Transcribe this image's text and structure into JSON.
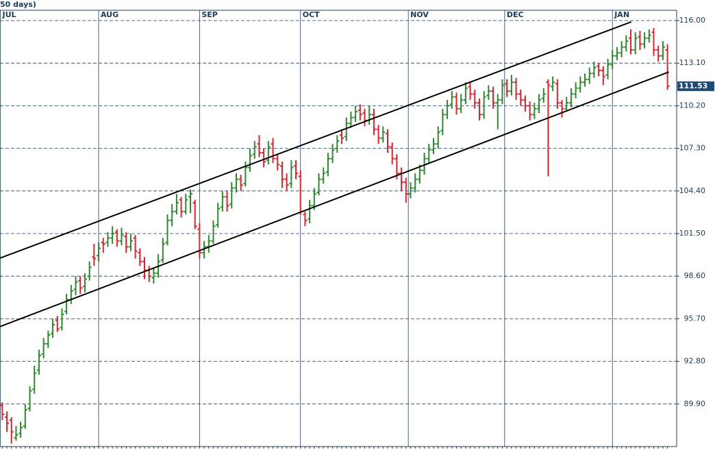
{
  "chart_data": {
    "type": "ohlc",
    "title": "50 days)",
    "up_color": "#2b8a2b",
    "down_color": "#e3202b",
    "last_color": "#1d4a7a",
    "xlim": [
      -0.5,
      147
    ],
    "ylim": [
      87.0,
      116.7
    ],
    "xticks": [
      {
        "value": -0.5,
        "label": "JUL"
      },
      {
        "value": 21,
        "label": "AUG"
      },
      {
        "value": 43,
        "label": "SEP"
      },
      {
        "value": 65,
        "label": "OCT"
      },
      {
        "value": 88.5,
        "label": "NOV"
      },
      {
        "value": 109.5,
        "label": "DEC"
      },
      {
        "value": 133,
        "label": "JAN"
      }
    ],
    "yticks": [
      {
        "value": 116,
        "label": "116.00"
      },
      {
        "value": 113.1,
        "label": "113.10"
      },
      {
        "value": 110.2,
        "label": "110.20"
      },
      {
        "value": 107.3,
        "label": "107.30"
      },
      {
        "value": 104.4,
        "label": "104.40"
      },
      {
        "value": 101.5,
        "label": "101.50"
      },
      {
        "value": 98.6,
        "label": "98.60"
      },
      {
        "value": 95.7,
        "label": "95.70"
      },
      {
        "value": 92.8,
        "label": "92.80"
      },
      {
        "value": 89.9,
        "label": "89.90"
      }
    ],
    "grid": true,
    "x": [
      0,
      1,
      2,
      3,
      4,
      5,
      6,
      7,
      8,
      9,
      10,
      11,
      12,
      13,
      14,
      15,
      16,
      17,
      18,
      19,
      20,
      21,
      22,
      23,
      24,
      25,
      26,
      27,
      28,
      29,
      30,
      31,
      32,
      33,
      34,
      35,
      36,
      37,
      38,
      39,
      40,
      41,
      42,
      43,
      44,
      45,
      46,
      47,
      48,
      49,
      50,
      51,
      52,
      53,
      54,
      55,
      56,
      57,
      58,
      59,
      60,
      61,
      62,
      63,
      64,
      65,
      66,
      67,
      68,
      69,
      70,
      71,
      72,
      73,
      74,
      75,
      76,
      77,
      78,
      79,
      80,
      81,
      82,
      83,
      84,
      85,
      86,
      87,
      88,
      89,
      90,
      91,
      92,
      93,
      94,
      95,
      96,
      97,
      98,
      99,
      100,
      101,
      102,
      103,
      104,
      105,
      106,
      107,
      108,
      109,
      110,
      111,
      112,
      113,
      114,
      115,
      116,
      117,
      118,
      119,
      120,
      121,
      122,
      123,
      124,
      125,
      126,
      127,
      128,
      129,
      130,
      131,
      132,
      133,
      134,
      135,
      136,
      137,
      138,
      139,
      140,
      141,
      142,
      143,
      144,
      145
    ],
    "bars": [
      [
        89.8,
        90.0,
        88.8,
        89.2
      ],
      [
        89.0,
        89.4,
        88.0,
        88.6
      ],
      [
        88.8,
        89.0,
        87.2,
        88.0
      ],
      [
        87.6,
        88.4,
        87.4,
        87.8
      ],
      [
        87.9,
        88.7,
        87.6,
        88.3
      ],
      [
        88.4,
        89.9,
        88.2,
        89.5
      ],
      [
        89.6,
        91.1,
        89.4,
        90.8
      ],
      [
        90.9,
        92.5,
        90.6,
        92.0
      ],
      [
        92.2,
        93.6,
        91.9,
        93.2
      ],
      [
        93.3,
        94.4,
        93.0,
        94.0
      ],
      [
        94.0,
        94.9,
        93.7,
        94.6
      ],
      [
        94.7,
        95.7,
        94.4,
        95.3
      ],
      [
        95.6,
        95.9,
        94.8,
        95.0
      ],
      [
        95.1,
        96.4,
        94.9,
        96.0
      ],
      [
        96.2,
        97.4,
        96.0,
        97.0
      ],
      [
        97.0,
        98.0,
        96.7,
        97.6
      ],
      [
        97.7,
        98.6,
        97.3,
        98.2
      ],
      [
        98.3,
        98.6,
        97.4,
        97.8
      ],
      [
        97.9,
        98.8,
        97.5,
        98.4
      ],
      [
        98.6,
        99.6,
        98.3,
        99.2
      ],
      [
        99.9,
        100.8,
        99.3,
        99.8
      ],
      [
        100.0,
        100.9,
        99.6,
        100.5
      ],
      [
        100.9,
        101.2,
        100.2,
        100.8
      ],
      [
        100.9,
        101.6,
        100.6,
        101.2
      ],
      [
        101.2,
        102.0,
        100.8,
        101.5
      ],
      [
        101.6,
        101.8,
        100.6,
        101.0
      ],
      [
        101.0,
        101.9,
        100.7,
        101.4
      ],
      [
        101.3,
        101.6,
        100.2,
        100.6
      ],
      [
        100.6,
        101.5,
        100.3,
        101.0
      ],
      [
        101.2,
        101.4,
        99.8,
        100.3
      ],
      [
        100.2,
        100.5,
        99.3,
        99.6
      ],
      [
        99.6,
        99.9,
        98.4,
        99.0
      ],
      [
        99.0,
        99.3,
        98.2,
        98.6
      ],
      [
        98.5,
        99.2,
        98.1,
        98.8
      ],
      [
        98.8,
        100.1,
        98.5,
        99.6
      ],
      [
        99.7,
        101.2,
        99.5,
        100.8
      ],
      [
        100.9,
        102.8,
        100.7,
        102.4
      ],
      [
        102.4,
        103.5,
        102.0,
        103.0
      ],
      [
        103.0,
        104.2,
        102.8,
        103.6
      ],
      [
        103.8,
        104.0,
        102.6,
        103.0
      ],
      [
        103.0,
        104.2,
        102.8,
        103.8
      ],
      [
        104.0,
        104.5,
        102.9,
        104.2
      ],
      [
        103.6,
        103.8,
        101.8,
        102.0
      ],
      [
        101.8,
        102.2,
        99.8,
        100.2
      ],
      [
        100.2,
        101.0,
        99.8,
        100.6
      ],
      [
        100.6,
        101.4,
        100.2,
        101.0
      ],
      [
        101.0,
        102.4,
        100.8,
        102.0
      ],
      [
        102.1,
        103.6,
        101.9,
        103.2
      ],
      [
        103.3,
        104.4,
        103.0,
        104.0
      ],
      [
        104.0,
        104.4,
        103.0,
        103.4
      ],
      [
        103.5,
        105.0,
        103.2,
        104.6
      ],
      [
        104.6,
        105.6,
        104.3,
        105.2
      ],
      [
        105.2,
        105.5,
        104.4,
        104.8
      ],
      [
        104.9,
        106.4,
        104.7,
        106.0
      ],
      [
        106.0,
        107.3,
        105.7,
        106.8
      ],
      [
        106.9,
        107.8,
        106.6,
        107.4
      ],
      [
        107.6,
        108.2,
        106.7,
        107.0
      ],
      [
        107.0,
        107.3,
        106.0,
        106.4
      ],
      [
        106.5,
        107.8,
        106.2,
        107.4
      ],
      [
        107.6,
        108.0,
        106.3,
        106.6
      ],
      [
        106.6,
        106.9,
        105.8,
        106.2
      ],
      [
        106.1,
        106.4,
        104.6,
        105.2
      ],
      [
        105.2,
        105.6,
        104.4,
        104.8
      ],
      [
        104.9,
        106.5,
        104.6,
        106.0
      ],
      [
        106.1,
        106.5,
        105.2,
        105.6
      ],
      [
        105.4,
        105.8,
        102.8,
        103.0
      ],
      [
        102.8,
        103.0,
        102.0,
        102.4
      ],
      [
        102.5,
        103.8,
        102.2,
        103.4
      ],
      [
        103.4,
        104.6,
        103.1,
        104.2
      ],
      [
        104.3,
        105.6,
        104.1,
        105.2
      ],
      [
        105.2,
        106.0,
        104.9,
        105.6
      ],
      [
        105.7,
        107.0,
        105.4,
        106.6
      ],
      [
        106.6,
        107.6,
        106.3,
        107.2
      ],
      [
        107.3,
        108.2,
        107.0,
        107.8
      ],
      [
        108.2,
        108.6,
        107.6,
        108.0
      ],
      [
        108.1,
        109.4,
        107.8,
        109.0
      ],
      [
        109.0,
        109.8,
        108.7,
        109.4
      ],
      [
        109.4,
        110.2,
        109.1,
        109.8
      ],
      [
        109.9,
        110.3,
        109.2,
        109.6
      ],
      [
        109.7,
        110.0,
        108.8,
        109.2
      ],
      [
        109.2,
        110.2,
        108.9,
        109.6
      ],
      [
        109.6,
        110.0,
        108.2,
        108.6
      ],
      [
        108.6,
        108.9,
        107.6,
        108.0
      ],
      [
        108.0,
        108.8,
        107.7,
        108.4
      ],
      [
        108.3,
        108.6,
        107.0,
        107.4
      ],
      [
        107.4,
        107.7,
        106.2,
        106.6
      ],
      [
        106.6,
        106.9,
        105.2,
        105.6
      ],
      [
        105.6,
        106.0,
        104.4,
        105.0
      ],
      [
        105.0,
        105.3,
        103.6,
        104.2
      ],
      [
        104.2,
        105.0,
        103.9,
        104.6
      ],
      [
        104.6,
        105.6,
        104.3,
        105.2
      ],
      [
        105.2,
        106.2,
        104.9,
        105.8
      ],
      [
        105.8,
        107.0,
        105.5,
        106.6
      ],
      [
        106.6,
        107.6,
        106.3,
        107.2
      ],
      [
        107.2,
        108.0,
        106.9,
        107.6
      ],
      [
        107.6,
        108.8,
        107.3,
        108.4
      ],
      [
        108.5,
        110.0,
        108.2,
        109.6
      ],
      [
        109.6,
        110.6,
        109.3,
        110.2
      ],
      [
        110.3,
        111.2,
        110.0,
        110.8
      ],
      [
        110.8,
        111.1,
        109.6,
        110.0
      ],
      [
        110.0,
        111.0,
        109.7,
        110.6
      ],
      [
        110.6,
        111.8,
        110.3,
        111.4
      ],
      [
        111.5,
        111.8,
        110.6,
        111.0
      ],
      [
        111.0,
        111.3,
        110.0,
        110.4
      ],
      [
        110.4,
        110.7,
        109.2,
        109.6
      ],
      [
        109.6,
        111.2,
        109.3,
        110.8
      ],
      [
        110.9,
        111.6,
        110.6,
        111.2
      ],
      [
        111.2,
        111.5,
        110.0,
        110.4
      ],
      [
        110.4,
        111.0,
        108.6,
        110.6
      ],
      [
        110.6,
        112.0,
        110.3,
        111.6
      ],
      [
        111.7,
        112.0,
        110.8,
        111.2
      ],
      [
        111.2,
        112.3,
        110.9,
        111.8
      ],
      [
        111.8,
        112.1,
        110.6,
        111.0
      ],
      [
        111.0,
        111.3,
        110.2,
        110.6
      ],
      [
        110.6,
        110.9,
        109.8,
        110.2
      ],
      [
        110.2,
        110.5,
        109.2,
        109.6
      ],
      [
        109.6,
        110.4,
        109.3,
        110.0
      ],
      [
        110.0,
        111.0,
        109.7,
        110.6
      ],
      [
        110.7,
        111.4,
        110.4,
        111.0
      ],
      [
        111.8,
        112.0,
        105.4,
        111.6
      ],
      [
        111.5,
        112.2,
        111.2,
        111.8
      ],
      [
        111.7,
        112.0,
        110.0,
        110.4
      ],
      [
        110.4,
        110.6,
        109.4,
        110.0
      ],
      [
        110.0,
        110.8,
        109.8,
        110.4
      ],
      [
        110.4,
        111.4,
        110.1,
        111.0
      ],
      [
        111.0,
        111.8,
        110.7,
        111.4
      ],
      [
        111.4,
        112.2,
        111.1,
        111.8
      ],
      [
        111.8,
        112.4,
        111.5,
        112.0
      ],
      [
        112.0,
        112.8,
        111.7,
        112.4
      ],
      [
        112.4,
        113.2,
        112.1,
        112.8
      ],
      [
        112.9,
        113.1,
        112.2,
        112.6
      ],
      [
        112.6,
        112.9,
        111.6,
        112.2
      ],
      [
        112.3,
        113.4,
        112.0,
        113.0
      ],
      [
        113.0,
        114.0,
        112.7,
        113.6
      ],
      [
        113.6,
        114.2,
        113.3,
        113.8
      ],
      [
        113.8,
        114.6,
        113.5,
        114.2
      ],
      [
        114.2,
        115.0,
        113.9,
        114.6
      ],
      [
        114.8,
        115.4,
        113.7,
        114.0
      ],
      [
        114.0,
        115.2,
        113.7,
        114.8
      ],
      [
        114.9,
        115.3,
        114.0,
        114.4
      ],
      [
        114.4,
        115.2,
        114.1,
        114.8
      ],
      [
        114.8,
        115.4,
        114.5,
        115.0
      ],
      [
        115.2,
        115.5,
        113.6,
        114.0
      ],
      [
        114.0,
        114.3,
        113.2,
        113.6
      ],
      [
        113.6,
        114.6,
        113.3,
        114.2
      ],
      [
        114.0,
        114.4,
        111.3,
        111.53
      ]
    ],
    "trendlines": [
      {
        "x": [
          -0.5,
          137.1
        ],
        "y": [
          99.83,
          115.91
        ]
      },
      {
        "x": [
          -0.5,
          145.3
        ],
        "y": [
          95.17,
          112.5
        ]
      }
    ]
  }
}
